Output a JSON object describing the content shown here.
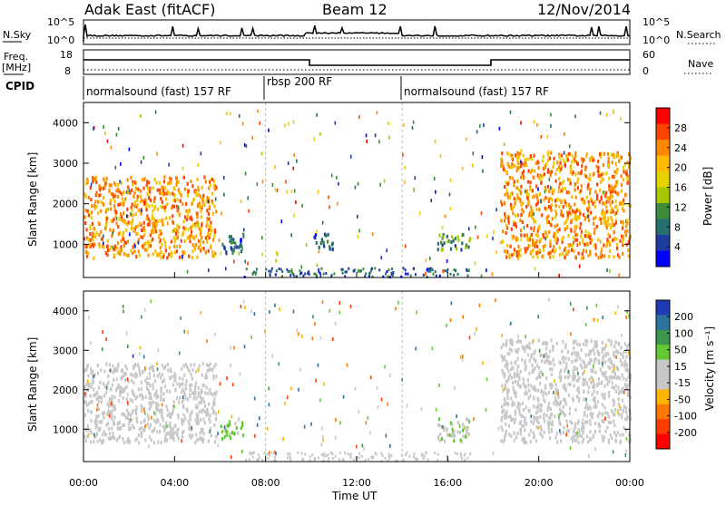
{
  "header": {
    "radar": "Adak East (fitACF)",
    "beam": "Beam 12",
    "date": "12/Nov/2014"
  },
  "sky_panel": {
    "left_label": "N.Sky",
    "right_label": "N.Search",
    "left_ticks": [
      "10^5",
      "10^0"
    ],
    "right_ticks": [
      "10^5",
      "10^0"
    ]
  },
  "freq_panel": {
    "left_label_1": "Freq.",
    "left_label_2": "[MHz]",
    "right_label": "Nave",
    "left_ticks": [
      "18",
      "8"
    ],
    "right_ticks": [
      "60",
      "0"
    ]
  },
  "cpid": {
    "label": "CPID",
    "segments": [
      {
        "text": "normalsound (fast) 157 RF",
        "start": 0,
        "end": 8
      },
      {
        "text": "rbsp 200 RF",
        "start": 8,
        "end": 14
      },
      {
        "text": "normalsound (fast) 157 RF",
        "start": 14,
        "end": 24
      }
    ]
  },
  "power_colorbar": {
    "label": "Power [dB]",
    "ticks": [
      "28",
      "24",
      "20",
      "16",
      "12",
      "8",
      "4"
    ],
    "colors": [
      "#ff0000",
      "#ff4400",
      "#ff8800",
      "#ffbb00",
      "#e6d200",
      "#a6c800",
      "#3c8c3c",
      "#286e6e",
      "#1e3ca0",
      "#0000ff"
    ]
  },
  "velocity_colorbar": {
    "label": "Velocity [m s⁻¹]",
    "ticks": [
      "200",
      "100",
      "50",
      "15",
      "-15",
      "-50",
      "-100",
      "-200"
    ],
    "colors": [
      "#1e3cb4",
      "#2d73a0",
      "#3c9650",
      "#64c832",
      "#c8c8c8",
      "#c8c8c8",
      "#ffb400",
      "#ff7800",
      "#ff3c00",
      "#ff0000"
    ]
  },
  "axes": {
    "ylabel": "Slant Range [km]",
    "xlabel": "Time UT",
    "yticks": [
      "4000",
      "3000",
      "2000",
      "1000"
    ],
    "xticks": [
      "00:00",
      "04:00",
      "08:00",
      "12:00",
      "16:00",
      "20:00",
      "00:00"
    ]
  },
  "chart_data": [
    {
      "type": "heatmap",
      "title": "Power [dB]",
      "x_unit": "hours UT",
      "xlim": [
        0,
        24
      ],
      "ylim": [
        180,
        4500
      ],
      "ylabel": "Slant Range [km]",
      "xlabel": "Time UT",
      "colorbar_range": [
        0,
        32
      ],
      "regions": [
        {
          "x": [
            0,
            5.8
          ],
          "y_km": [
            700,
            2700
          ],
          "power_db": 24,
          "description": "strong backscatter band"
        },
        {
          "x": [
            18.3,
            24
          ],
          "y_km": [
            700,
            3300
          ],
          "power_db": 24,
          "description": "strong backscatter band"
        },
        {
          "x": [
            10,
            11
          ],
          "y_km": [
            900,
            1300
          ],
          "power_db": 6
        },
        {
          "x": [
            15.5,
            17
          ],
          "y_km": [
            900,
            1300
          ],
          "power_db": 10
        },
        {
          "x": [
            6,
            7
          ],
          "y_km": [
            800,
            1300
          ],
          "power_db": 6
        }
      ]
    },
    {
      "type": "heatmap",
      "title": "Velocity [m s⁻¹]",
      "x_unit": "hours UT",
      "xlim": [
        0,
        24
      ],
      "ylim": [
        180,
        4500
      ],
      "ylabel": "Slant Range [km]",
      "xlabel": "Time UT",
      "colorbar_range": [
        -250,
        250
      ],
      "regions": [
        {
          "x": [
            0,
            5.8
          ],
          "y_km": [
            700,
            2700
          ],
          "velocity": 0,
          "description": "ground scatter (grey)"
        },
        {
          "x": [
            18.3,
            24
          ],
          "y_km": [
            700,
            3300
          ],
          "velocity": 0,
          "description": "ground scatter (grey)"
        },
        {
          "x": [
            15.5,
            17
          ],
          "y_km": [
            700,
            1300
          ],
          "velocity": 40
        },
        {
          "x": [
            6,
            7
          ],
          "y_km": [
            800,
            1300
          ],
          "velocity": 80
        }
      ]
    }
  ]
}
